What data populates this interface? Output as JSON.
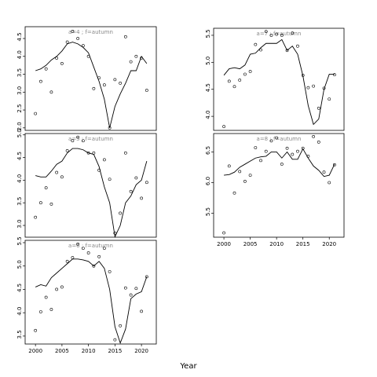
{
  "xlabel": "Year",
  "chart_data": [
    {
      "type": "line",
      "title": "a=4 ; f=autumn",
      "x": [
        2000,
        2001,
        2002,
        2003,
        2004,
        2005,
        2006,
        2007,
        2008,
        2009,
        2010,
        2011,
        2012,
        2013,
        2014,
        2015,
        2016,
        2017,
        2018,
        2019,
        2020,
        2021
      ],
      "series": [
        {
          "marker": "circle",
          "color": "#000000",
          "values": [
            2.4,
            3.3,
            3.65,
            3.0,
            3.95,
            3.8,
            4.4,
            4.7,
            4.5,
            4.3,
            4.0,
            3.1,
            3.4,
            3.2,
            2.0,
            3.35,
            3.25,
            4.55,
            3.85,
            4.0,
            3.95,
            3.05
          ]
        },
        {
          "marker": "none",
          "color": "#000000",
          "values": [
            3.6,
            3.65,
            3.75,
            3.9,
            4.0,
            4.15,
            4.35,
            4.4,
            4.35,
            4.25,
            4.1,
            3.7,
            3.3,
            2.8,
            2.0,
            2.6,
            2.95,
            3.25,
            3.6,
            3.6,
            4.0,
            3.8
          ]
        }
      ],
      "xlim": [
        1998.05,
        2022.8
      ],
      "ylim": [
        1.93,
        4.83
      ],
      "xticks": [
        2000,
        2005,
        2010,
        2015,
        2020
      ],
      "show_xticks": false,
      "yticks": [
        {
          "value": 2,
          "label": "2.0"
        },
        2.5,
        {
          "value": 3,
          "label": "3.0"
        },
        3.5,
        {
          "value": 4,
          "label": "4.0"
        },
        4.5
      ]
    },
    {
      "type": "line",
      "title": "a=5 ; f=autumn",
      "x": [
        2000,
        2001,
        2002,
        2003,
        2004,
        2005,
        2006,
        2007,
        2008,
        2009,
        2010,
        2011,
        2012,
        2013,
        2014,
        2015,
        2016,
        2017,
        2018,
        2019,
        2020,
        2021
      ],
      "series": [
        {
          "marker": "circle",
          "color": "#000000",
          "values": [
            3.18,
            3.5,
            3.83,
            3.47,
            4.17,
            4.07,
            4.65,
            4.87,
            4.95,
            4.87,
            4.6,
            4.6,
            4.22,
            4.45,
            4.02,
            2.83,
            3.27,
            4.6,
            3.75,
            4.05,
            3.6,
            3.95
          ]
        },
        {
          "marker": "none",
          "color": "#000000",
          "values": [
            4.1,
            4.07,
            4.07,
            4.2,
            4.35,
            4.42,
            4.6,
            4.7,
            4.7,
            4.67,
            4.6,
            4.57,
            4.3,
            3.85,
            3.5,
            2.75,
            3.0,
            3.5,
            3.65,
            3.9,
            4.0,
            4.42
          ]
        }
      ],
      "xlim": [
        1998.05,
        2022.8
      ],
      "ylim": [
        2.74,
        5.03
      ],
      "xticks": [
        2000,
        2005,
        2010,
        2015,
        2020
      ],
      "show_xticks": false,
      "yticks": [
        {
          "value": 3,
          "label": "3.0"
        },
        3.5,
        {
          "value": 4,
          "label": "4.0"
        },
        4.5,
        {
          "value": 5,
          "label": "5.0"
        }
      ]
    },
    {
      "type": "line",
      "title": "a=6 ; f=autumn",
      "x": [
        2000,
        2001,
        2002,
        2003,
        2004,
        2005,
        2006,
        2007,
        2008,
        2009,
        2010,
        2011,
        2012,
        2013,
        2014,
        2015,
        2016,
        2017,
        2018,
        2019,
        2020,
        2021
      ],
      "series": [
        {
          "marker": "circle",
          "color": "#000000",
          "values": [
            3.62,
            4.02,
            4.33,
            4.07,
            4.5,
            4.55,
            5.1,
            5.18,
            5.47,
            5.38,
            5.28,
            5.0,
            5.2,
            5.38,
            4.88,
            3.42,
            3.72,
            4.53,
            4.38,
            4.52,
            4.03,
            4.77
          ]
        },
        {
          "marker": "none",
          "color": "#000000",
          "values": [
            4.55,
            4.6,
            4.57,
            4.75,
            4.85,
            4.95,
            5.05,
            5.15,
            5.15,
            5.13,
            5.1,
            5.0,
            5.1,
            4.95,
            4.5,
            3.7,
            3.35,
            3.65,
            4.3,
            4.4,
            4.45,
            4.77
          ]
        }
      ],
      "xlim": [
        1998.05,
        2022.8
      ],
      "ylim": [
        3.33,
        5.55
      ],
      "xticks": [
        2000,
        2005,
        2010,
        2015,
        2020
      ],
      "show_xticks": true,
      "yticks": [
        3.5,
        {
          "value": 4,
          "label": "4.0"
        },
        4.5,
        {
          "value": 5,
          "label": "5.0"
        },
        5.5
      ]
    },
    {
      "type": "line",
      "title": "a=7 ; f=autumn",
      "x": [
        2000,
        2001,
        2002,
        2003,
        2004,
        2005,
        2006,
        2007,
        2008,
        2009,
        2010,
        2011,
        2012,
        2013,
        2014,
        2015,
        2016,
        2017,
        2018,
        2019,
        2020,
        2021
      ],
      "series": [
        {
          "marker": "circle",
          "color": "#000000",
          "values": [
            3.81,
            4.65,
            4.55,
            4.67,
            4.78,
            4.83,
            5.33,
            5.23,
            5.57,
            5.5,
            5.52,
            5.5,
            5.22,
            5.54,
            5.3,
            4.76,
            4.53,
            4.56,
            4.15,
            4.52,
            4.32,
            4.77
          ]
        },
        {
          "marker": "none",
          "color": "#000000",
          "values": [
            4.76,
            4.88,
            4.9,
            4.88,
            4.95,
            5.15,
            5.17,
            5.27,
            5.35,
            5.35,
            5.35,
            5.42,
            5.22,
            5.3,
            5.15,
            4.75,
            4.2,
            3.85,
            3.95,
            4.5,
            4.78,
            4.78
          ]
        }
      ],
      "xlim": [
        1998.05,
        2022.8
      ],
      "ylim": [
        3.74,
        5.63
      ],
      "xticks": [
        2000,
        2005,
        2010,
        2015,
        2020
      ],
      "show_xticks": false,
      "yticks": [
        {
          "value": 4,
          "label": "4.0"
        },
        4.5,
        {
          "value": 5,
          "label": "5.0"
        },
        5.5
      ]
    },
    {
      "type": "line",
      "title": "a=8 ; f=autumn",
      "x": [
        2000,
        2001,
        2002,
        2003,
        2004,
        2005,
        2006,
        2007,
        2008,
        2009,
        2010,
        2011,
        2012,
        2013,
        2014,
        2015,
        2016,
        2017,
        2018,
        2019,
        2020,
        2021
      ],
      "series": [
        {
          "marker": "circle",
          "color": "#000000",
          "values": [
            5.18,
            6.27,
            5.83,
            6.18,
            6.02,
            6.12,
            6.57,
            6.36,
            6.51,
            6.68,
            6.73,
            6.3,
            6.56,
            6.46,
            6.51,
            6.56,
            6.43,
            6.75,
            6.66,
            6.17,
            6.0,
            6.29
          ]
        },
        {
          "marker": "none",
          "color": "#000000",
          "values": [
            6.12,
            6.13,
            6.17,
            6.25,
            6.3,
            6.35,
            6.4,
            6.42,
            6.43,
            6.5,
            6.5,
            6.4,
            6.5,
            6.38,
            6.38,
            6.55,
            6.4,
            6.27,
            6.2,
            6.1,
            6.12,
            6.3
          ]
        }
      ],
      "xlim": [
        1998.05,
        2022.8
      ],
      "ylim": [
        5.11,
        6.8
      ],
      "xticks": [
        2000,
        2005,
        2010,
        2015,
        2020
      ],
      "show_xticks": true,
      "yticks": [
        5.5,
        {
          "value": 6,
          "label": "6.0"
        },
        6.5
      ]
    }
  ]
}
